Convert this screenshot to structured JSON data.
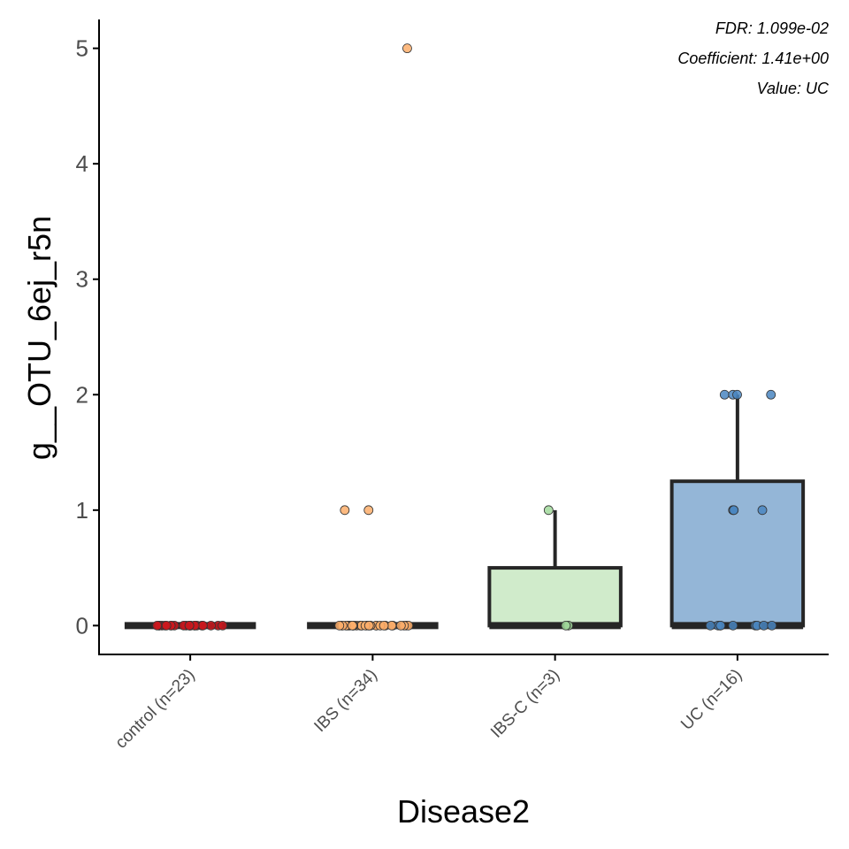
{
  "chart_data": {
    "type": "box",
    "xlabel": "Disease2",
    "ylabel": "g__OTU_6ej_r5n",
    "ylim": [
      -0.25,
      5.25
    ],
    "yticks": [
      0,
      1,
      2,
      3,
      4,
      5
    ],
    "grid": false,
    "annotations": [
      "FDR: 1.099e-02",
      "Coefficient: 1.41e+00",
      "Value: UC"
    ],
    "categories": [
      "control (n=23)",
      "IBS (n=34)",
      "IBS-C (n=3)",
      "UC (n=16)"
    ],
    "boxes": [
      {
        "category": "control (n=23)",
        "min": 0,
        "q1": 0,
        "median": 0,
        "q3": 0,
        "max": 0,
        "fill": "#ffffff",
        "point_color": "#cb181d",
        "points": [
          0,
          0,
          0,
          0,
          0,
          0,
          0,
          0,
          0,
          0,
          0,
          0,
          0,
          0,
          0,
          0,
          0,
          0,
          0,
          0,
          0,
          0,
          0
        ]
      },
      {
        "category": "IBS (n=34)",
        "min": 0,
        "q1": 0,
        "median": 0,
        "q3": 0,
        "max": 0,
        "fill": "#ffffff",
        "point_color": "#fdae6b",
        "points": [
          5,
          1,
          1,
          0,
          0,
          0,
          0,
          0,
          0,
          0,
          0,
          0,
          0,
          0,
          0,
          0,
          0,
          0,
          0,
          0,
          0,
          0,
          0,
          0,
          0,
          0,
          0,
          0,
          0,
          0,
          0,
          0,
          0,
          0
        ]
      },
      {
        "category": "IBS-C (n=3)",
        "min": 0,
        "q1": 0,
        "median": 0,
        "q3": 0.5,
        "max": 1,
        "fill": "#d0ebcb",
        "point_color": "#a1d99b",
        "points": [
          1,
          0,
          0
        ]
      },
      {
        "category": "UC (n=16)",
        "min": 0,
        "q1": 0,
        "median": 0,
        "q3": 1.25,
        "max": 2,
        "fill": "#94b6d7",
        "point_color": "#4a86c1",
        "points": [
          2,
          2,
          2,
          2,
          1,
          1,
          1,
          0,
          0,
          0,
          0,
          0,
          0,
          0,
          0,
          0
        ]
      }
    ]
  }
}
